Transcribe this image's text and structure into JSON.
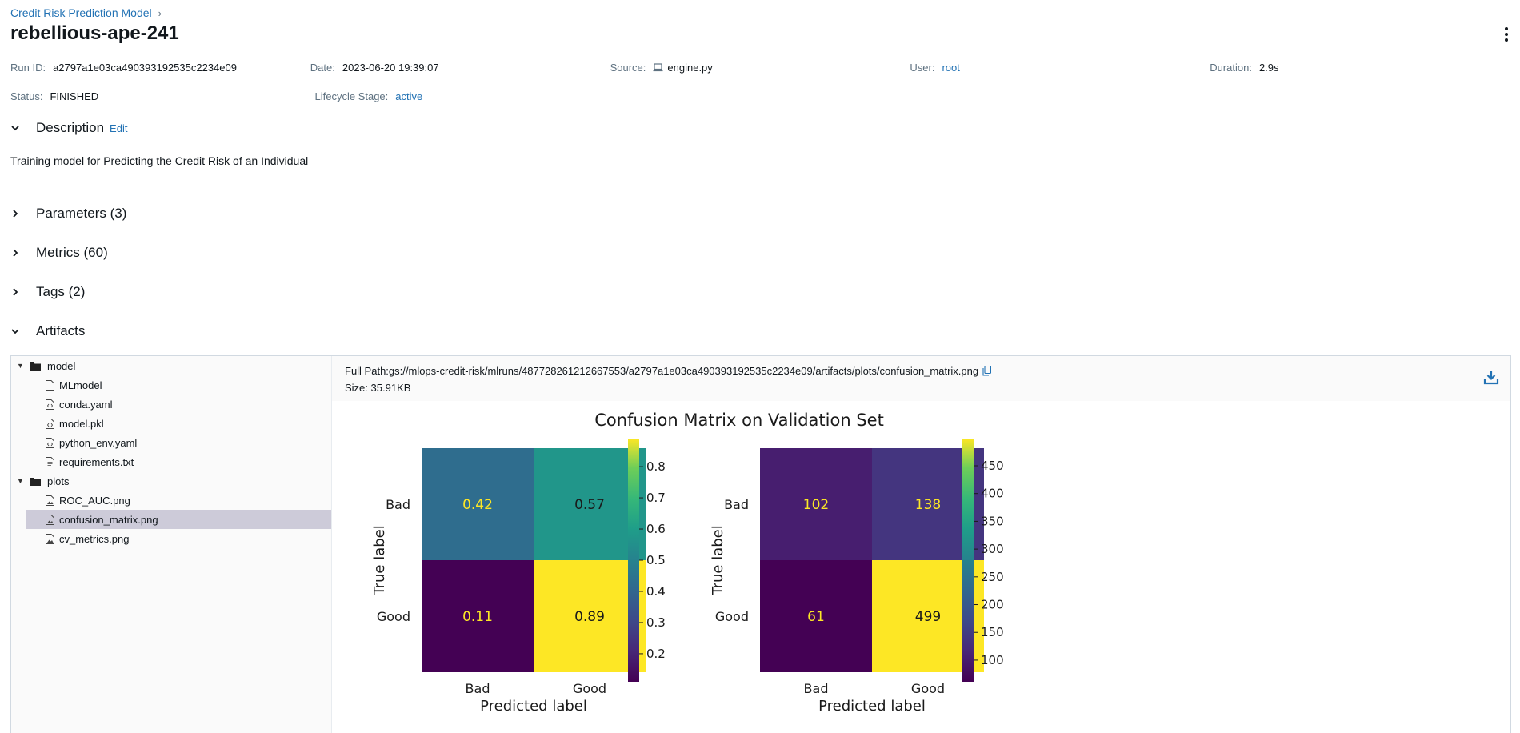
{
  "breadcrumb": {
    "parent": "Credit Risk Prediction Model",
    "separator": "›"
  },
  "run": {
    "title": "rebellious-ape-241",
    "run_id_label": "Run ID:",
    "run_id": "a2797a1e03ca490393192535c2234e09",
    "date_label": "Date:",
    "date": "2023-06-20 19:39:07",
    "source_label": "Source:",
    "source": "engine.py",
    "user_label": "User:",
    "user": "root",
    "duration_label": "Duration:",
    "duration": "2.9s",
    "status_label": "Status:",
    "status": "FINISHED",
    "lifecycle_label": "Lifecycle Stage:",
    "lifecycle": "active"
  },
  "sections": {
    "description": "Description",
    "edit": "Edit",
    "description_text": "Training model for Predicting the Credit Risk of an Individual",
    "parameters": "Parameters (3)",
    "metrics": "Metrics (60)",
    "tags": "Tags (2)",
    "artifacts": "Artifacts"
  },
  "tree": {
    "model": "model",
    "mlmodel": "MLmodel",
    "conda": "conda.yaml",
    "pkl": "model.pkl",
    "pyenv": "python_env.yaml",
    "req": "requirements.txt",
    "plots": "plots",
    "roc": "ROC_AUC.png",
    "cm": "confusion_matrix.png",
    "cv": "cv_metrics.png"
  },
  "preview": {
    "full_path_label": "Full Path:",
    "full_path": "gs://mlops-credit-risk/mlruns/487728261212667553/a2797a1e03ca490393192535c2234e09/artifacts/plots/confusion_matrix.png",
    "size_label": "Size:",
    "size": "35.91KB"
  },
  "colors": {
    "link": "#2272b4",
    "selected": "#cdcbd9"
  },
  "chart_data": {
    "type": "heatmap",
    "title": "Confusion Matrix on Validation Set",
    "colormap": "viridis",
    "matrices": [
      {
        "name": "normalized",
        "rows": [
          "Bad",
          "Good"
        ],
        "cols": [
          "Bad",
          "Good"
        ],
        "values": [
          [
            "0.42",
            "0.57"
          ],
          [
            "0.11",
            "0.89"
          ]
        ],
        "xlabel": "Predicted label",
        "ylabel": "True label",
        "colorbar_ticks": [
          "0.8",
          "0.7",
          "0.6",
          "0.5",
          "0.4",
          "0.3",
          "0.2"
        ],
        "colorbar_range": [
          0.11,
          0.89
        ]
      },
      {
        "name": "counts",
        "rows": [
          "Bad",
          "Good"
        ],
        "cols": [
          "Bad",
          "Good"
        ],
        "values": [
          [
            "102",
            "138"
          ],
          [
            "61",
            "499"
          ]
        ],
        "xlabel": "Predicted label",
        "ylabel": "True label",
        "colorbar_ticks": [
          "450",
          "400",
          "350",
          "300",
          "250",
          "200",
          "150",
          "100"
        ],
        "colorbar_range": [
          61,
          499
        ]
      }
    ]
  }
}
